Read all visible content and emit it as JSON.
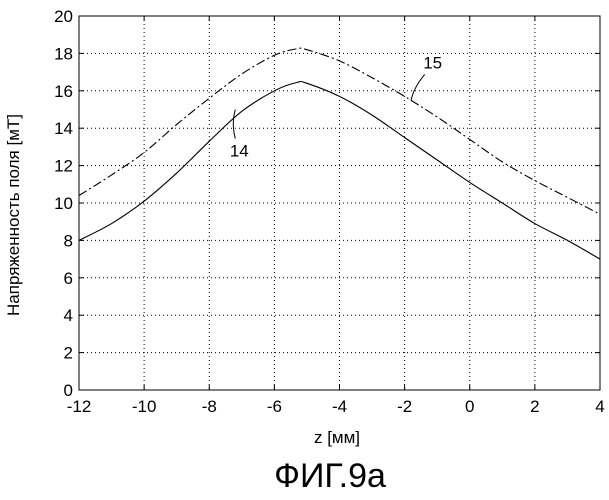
{
  "figure": {
    "caption": "ФИГ.9а"
  },
  "chart_data": {
    "type": "line",
    "title": "",
    "xlabel": "z [мм]",
    "ylabel": "Напряженность поля [мТ]",
    "xlim": [
      -12,
      4
    ],
    "ylim": [
      0,
      20
    ],
    "xticks": [
      -12,
      -10,
      -8,
      -6,
      -4,
      -2,
      0,
      2,
      4
    ],
    "yticks": [
      0,
      2,
      4,
      6,
      8,
      10,
      12,
      14,
      16,
      18,
      20
    ],
    "xtick_labels": [
      "-12",
      "-10",
      "-8",
      "-6",
      "-4",
      "-2",
      "0",
      "2",
      "4"
    ],
    "ytick_labels": [
      "0",
      "2",
      "4",
      "6",
      "8",
      "10",
      "12",
      "14",
      "16",
      "18",
      "20"
    ],
    "grid": true,
    "series": [
      {
        "name": "14",
        "style": "solid",
        "color": "#000000",
        "x": [
          -12,
          -11,
          -10,
          -9,
          -8,
          -7,
          -6,
          -5.3,
          -5,
          -4,
          -3,
          -2,
          -1,
          0,
          1,
          2,
          3,
          4
        ],
        "y": [
          8.0,
          8.9,
          10.1,
          11.6,
          13.3,
          14.9,
          16.0,
          16.45,
          16.4,
          15.7,
          14.7,
          13.5,
          12.3,
          11.1,
          10.0,
          8.9,
          8.0,
          7.0
        ]
      },
      {
        "name": "15",
        "style": "dashdot",
        "color": "#000000",
        "x": [
          -12,
          -11,
          -10,
          -9,
          -8,
          -7,
          -6,
          -5.3,
          -5,
          -4,
          -3,
          -2,
          -1,
          0,
          1,
          2,
          3,
          4
        ],
        "y": [
          10.4,
          11.5,
          12.7,
          14.2,
          15.6,
          16.9,
          17.9,
          18.25,
          18.2,
          17.6,
          16.7,
          15.7,
          14.6,
          13.4,
          12.2,
          11.2,
          10.3,
          9.4
        ]
      }
    ],
    "annotations": [
      {
        "text": "14",
        "target_series": "14",
        "text_x": -7.2,
        "text_y": 12.8,
        "point_x": -7.2,
        "point_y": 15.0
      },
      {
        "text": "15",
        "target_series": "15",
        "text_x": -1.2,
        "text_y": 17.2,
        "point_x": -1.8,
        "point_y": 15.5
      }
    ]
  }
}
